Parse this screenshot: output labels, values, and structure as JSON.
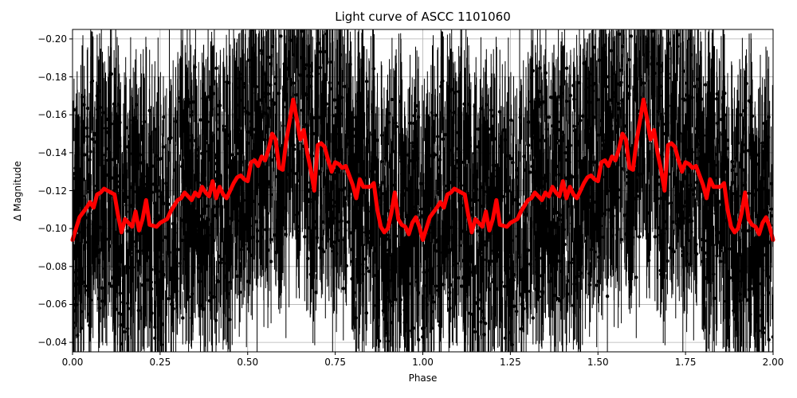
{
  "chart_data": {
    "type": "scatter",
    "title": "Light curve of ASCC 1101060",
    "xlabel": "Phase",
    "ylabel": "Δ Magnitude",
    "xlim": [
      0.0,
      2.0
    ],
    "ylim": [
      -0.035,
      -0.205
    ],
    "y_inverted": true,
    "grid": true,
    "xticks": [
      "0.00",
      "0.25",
      "0.50",
      "0.75",
      "1.00",
      "1.25",
      "1.50",
      "1.75",
      "2.00"
    ],
    "yticks": [
      "−0.20",
      "−0.18",
      "−0.16",
      "−0.14",
      "−0.12",
      "−0.10",
      "−0.08",
      "−0.06",
      "−0.04"
    ],
    "series": [
      {
        "name": "observations",
        "style": "black points with error bars",
        "color": "#000000",
        "description": "Dense scatter of phase-folded photometry spanning roughly -0.03 to -0.21 mag, repeated over two cycles"
      },
      {
        "name": "binned curve",
        "style": "thick red line",
        "color": "#ff0000",
        "phase": [
          0.0,
          0.02,
          0.04,
          0.05,
          0.06,
          0.07,
          0.08,
          0.09,
          0.1,
          0.11,
          0.12,
          0.13,
          0.14,
          0.15,
          0.17,
          0.18,
          0.19,
          0.2,
          0.21,
          0.22,
          0.24,
          0.25,
          0.27,
          0.28,
          0.3,
          0.31,
          0.32,
          0.33,
          0.34,
          0.35,
          0.36,
          0.37,
          0.38,
          0.39,
          0.4,
          0.41,
          0.42,
          0.43,
          0.44,
          0.45,
          0.46,
          0.47,
          0.48,
          0.49,
          0.5,
          0.51,
          0.52,
          0.53,
          0.54,
          0.55,
          0.56,
          0.57,
          0.58,
          0.59,
          0.6,
          0.61,
          0.62,
          0.63,
          0.64,
          0.65,
          0.66,
          0.67,
          0.68,
          0.69,
          0.7,
          0.71,
          0.72,
          0.73,
          0.74,
          0.75,
          0.76,
          0.77,
          0.78,
          0.79,
          0.8,
          0.81,
          0.82,
          0.83,
          0.84,
          0.85,
          0.86,
          0.87,
          0.88,
          0.89,
          0.9,
          0.91,
          0.92,
          0.93,
          0.94,
          0.95,
          0.96,
          0.97,
          0.98,
          0.99,
          1.0
        ],
        "values": [
          -0.094,
          -0.106,
          -0.111,
          -0.114,
          -0.111,
          -0.118,
          -0.119,
          -0.121,
          -0.12,
          -0.119,
          -0.118,
          -0.107,
          -0.098,
          -0.105,
          -0.101,
          -0.109,
          -0.099,
          -0.105,
          -0.115,
          -0.102,
          -0.101,
          -0.103,
          -0.105,
          -0.109,
          -0.115,
          -0.116,
          -0.119,
          -0.117,
          -0.115,
          -0.119,
          -0.117,
          -0.122,
          -0.119,
          -0.117,
          -0.125,
          -0.116,
          -0.122,
          -0.118,
          -0.116,
          -0.12,
          -0.124,
          -0.127,
          -0.128,
          -0.126,
          -0.125,
          -0.135,
          -0.136,
          -0.133,
          -0.138,
          -0.136,
          -0.142,
          -0.15,
          -0.147,
          -0.132,
          -0.131,
          -0.146,
          -0.157,
          -0.168,
          -0.158,
          -0.147,
          -0.152,
          -0.14,
          -0.131,
          -0.12,
          -0.144,
          -0.145,
          -0.143,
          -0.136,
          -0.13,
          -0.135,
          -0.134,
          -0.132,
          -0.133,
          -0.128,
          -0.123,
          -0.116,
          -0.126,
          -0.122,
          -0.122,
          -0.122,
          -0.124,
          -0.11,
          -0.101,
          -0.098,
          -0.1,
          -0.108,
          -0.119,
          -0.105,
          -0.102,
          -0.101,
          -0.097,
          -0.103,
          -0.106,
          -0.101,
          -0.094
        ],
        "repeats_with_period": 1.0
      }
    ]
  }
}
